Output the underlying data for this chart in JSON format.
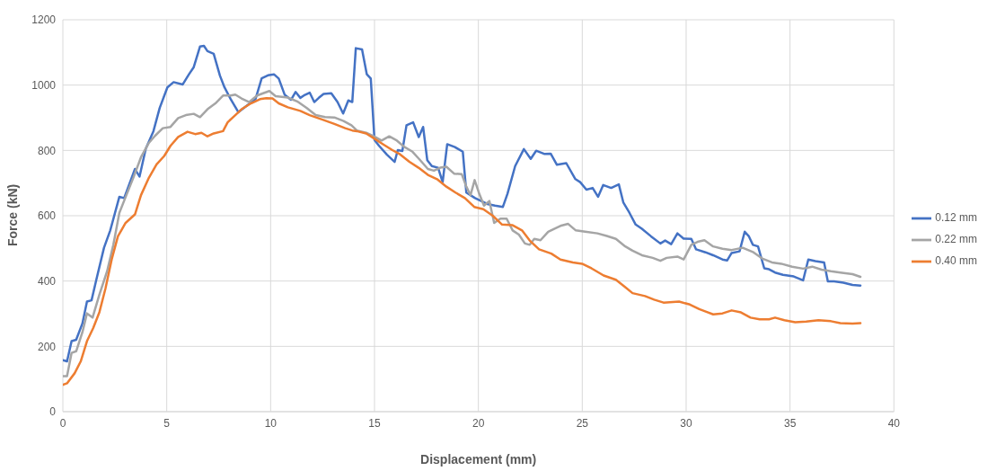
{
  "chart_data": {
    "type": "line",
    "xlabel": "Displacement (mm)",
    "ylabel": "Force (kN)",
    "xlim": [
      0,
      40
    ],
    "xticks": [
      0,
      5,
      10,
      15,
      20,
      25,
      30,
      35,
      40
    ],
    "ylim": [
      0,
      1200
    ],
    "yticks": [
      0,
      200,
      400,
      600,
      800,
      1000,
      1200
    ],
    "grid": true,
    "legend": "right",
    "series": [
      {
        "name": "0.12 mm",
        "color": "#4472c4",
        "x": [
          0,
          0.2,
          0.42,
          0.64,
          0.94,
          1.16,
          1.38,
          1.61,
          1.98,
          2.28,
          2.72,
          2.95,
          3.47,
          3.69,
          3.99,
          4.36,
          4.66,
          5.03,
          5.33,
          5.77,
          6.07,
          6.3,
          6.6,
          6.79,
          6.96,
          7.26,
          7.56,
          7.78,
          8.08,
          8.45,
          8.9,
          9.27,
          9.57,
          9.87,
          10.16,
          10.39,
          10.68,
          10.98,
          11.2,
          11.43,
          11.65,
          11.88,
          12.1,
          12.32,
          12.55,
          12.92,
          13.22,
          13.49,
          13.74,
          13.93,
          14.1,
          14.4,
          14.63,
          14.82,
          15.0,
          15.22,
          15.6,
          15.97,
          16.12,
          16.34,
          16.54,
          16.86,
          17.13,
          17.34,
          17.54,
          17.76,
          18.06,
          18.28,
          18.5,
          18.87,
          19.25,
          19.42,
          19.84,
          20.43,
          20.8,
          21.18,
          21.4,
          21.77,
          22.19,
          22.52,
          22.78,
          23.19,
          23.48,
          23.78,
          24.23,
          24.67,
          24.9,
          25.2,
          25.5,
          25.76,
          26.01,
          26.39,
          26.76,
          26.98,
          27.27,
          27.57,
          27.87,
          28.31,
          28.76,
          28.99,
          29.28,
          29.58,
          29.88,
          30.25,
          30.48,
          30.93,
          31.3,
          31.75,
          31.97,
          32.19,
          32.57,
          32.82,
          33.01,
          33.21,
          33.46,
          33.76,
          33.99,
          34.28,
          34.66,
          35.18,
          35.63,
          35.88,
          36.22,
          36.64,
          36.82,
          37.12,
          37.57,
          38.01,
          38.39
        ],
        "values": [
          158,
          154,
          216,
          220,
          270,
          337,
          341,
          404,
          502,
          555,
          658,
          654,
          743,
          720,
          805,
          859,
          930,
          993,
          1009,
          1002,
          1033,
          1055,
          1118,
          1120,
          1104,
          1096,
          1029,
          993,
          957,
          917,
          939,
          957,
          1021,
          1030,
          1033,
          1020,
          970,
          955,
          979,
          961,
          970,
          977,
          948,
          961,
          973,
          975,
          948,
          913,
          953,
          948,
          1113,
          1109,
          1033,
          1020,
          832,
          814,
          787,
          765,
          801,
          798,
          877,
          886,
          841,
          872,
          770,
          752,
          747,
          703,
          819,
          810,
          796,
          671,
          654,
          636,
          631,
          627,
          667,
          752,
          804,
          774,
          799,
          789,
          790,
          756,
          761,
          712,
          703,
          680,
          685,
          658,
          694,
          685,
          696,
          640,
          609,
          573,
          560,
          537,
          515,
          524,
          513,
          546,
          530,
          529,
          497,
          488,
          479,
          466,
          463,
          486,
          491,
          551,
          538,
          511,
          506,
          439,
          436,
          426,
          419,
          414,
          402,
          466,
          461,
          457,
          399,
          399,
          395,
          388,
          386
        ]
      },
      {
        "name": "0.22 mm",
        "color": "#a5a5a5",
        "x": [
          0,
          0.2,
          0.42,
          0.64,
          0.94,
          1.16,
          1.43,
          1.76,
          2.13,
          2.43,
          2.72,
          3.0,
          3.39,
          3.76,
          4.14,
          4.44,
          4.81,
          5.18,
          5.55,
          5.92,
          6.3,
          6.6,
          6.96,
          7.34,
          7.71,
          8.08,
          8.3,
          8.6,
          8.97,
          9.35,
          9.64,
          9.94,
          10.24,
          10.83,
          11.28,
          11.73,
          12.17,
          12.62,
          13.07,
          13.51,
          13.89,
          14.15,
          14.6,
          14.97,
          15.34,
          15.71,
          16.08,
          16.45,
          16.83,
          17.2,
          17.57,
          17.86,
          18.16,
          18.46,
          18.83,
          19.2,
          19.42,
          19.62,
          19.82,
          20.02,
          20.27,
          20.53,
          20.76,
          21.06,
          21.36,
          21.65,
          21.95,
          22.24,
          22.47,
          22.69,
          22.99,
          23.36,
          23.95,
          24.32,
          24.69,
          25.14,
          25.73,
          26.18,
          26.62,
          27.07,
          27.42,
          27.87,
          28.39,
          28.76,
          29.06,
          29.58,
          29.88,
          30.25,
          30.55,
          30.88,
          31.3,
          31.75,
          32.19,
          32.72,
          33.24,
          33.69,
          34.13,
          34.58,
          35.1,
          35.63,
          36.07,
          36.52,
          36.97,
          37.42,
          38.01,
          38.39
        ],
        "values": [
          109,
          109,
          180,
          185,
          243,
          301,
          288,
          359,
          430,
          511,
          609,
          654,
          716,
          779,
          823,
          845,
          868,
          872,
          899,
          908,
          912,
          902,
          926,
          944,
          968,
          968,
          971,
          959,
          948,
          968,
          975,
          982,
          966,
          962,
          950,
          930,
          908,
          902,
          901,
          890,
          877,
          861,
          854,
          843,
          830,
          843,
          830,
          810,
          796,
          770,
          743,
          738,
          747,
          750,
          729,
          727,
          689,
          663,
          709,
          671,
          631,
          645,
          578,
          591,
          591,
          555,
          542,
          515,
          511,
          529,
          525,
          551,
          569,
          575,
          555,
          551,
          546,
          538,
          529,
          506,
          493,
          479,
          471,
          462,
          471,
          475,
          466,
          511,
          520,
          525,
          506,
          499,
          495,
          502,
          488,
          468,
          457,
          453,
          444,
          438,
          444,
          435,
          430,
          426,
          421,
          413
        ]
      },
      {
        "name": "0.40 mm",
        "color": "#ed7d31",
        "x": [
          0,
          0.2,
          0.57,
          0.86,
          1.16,
          1.46,
          1.76,
          2.05,
          2.35,
          2.65,
          3.02,
          3.47,
          3.76,
          4.14,
          4.51,
          4.88,
          5.18,
          5.55,
          6.0,
          6.37,
          6.67,
          6.96,
          7.26,
          7.71,
          7.93,
          8.23,
          8.6,
          9.05,
          9.49,
          9.79,
          10.09,
          10.39,
          10.83,
          11.43,
          11.88,
          12.47,
          13.07,
          13.59,
          13.93,
          14.15,
          14.6,
          14.97,
          15.41,
          15.86,
          16.23,
          16.68,
          17.12,
          17.57,
          18.01,
          18.46,
          18.9,
          19.35,
          19.8,
          20.24,
          20.69,
          21.14,
          21.65,
          22.1,
          22.47,
          22.92,
          23.51,
          23.95,
          24.55,
          24.99,
          25.44,
          26.03,
          26.62,
          27.07,
          27.42,
          28.02,
          28.46,
          28.91,
          29.66,
          30.18,
          30.63,
          31.0,
          31.3,
          31.75,
          32.19,
          32.64,
          33.1,
          33.54,
          33.99,
          34.28,
          34.73,
          35.25,
          35.78,
          36.37,
          36.97,
          37.42,
          38.01,
          38.39
        ],
        "values": [
          82,
          87,
          118,
          154,
          216,
          256,
          305,
          377,
          466,
          537,
          578,
          604,
          663,
          716,
          757,
          783,
          814,
          841,
          857,
          850,
          854,
          843,
          852,
          859,
          886,
          904,
          926,
          944,
          957,
          960,
          959,
          944,
          932,
          921,
          908,
          895,
          881,
          868,
          861,
          859,
          852,
          837,
          819,
          801,
          788,
          765,
          747,
          725,
          712,
          689,
          671,
          654,
          627,
          620,
          600,
          573,
          571,
          555,
          524,
          497,
          484,
          466,
          457,
          453,
          439,
          417,
          404,
          381,
          363,
          354,
          343,
          334,
          337,
          328,
          314,
          305,
          298,
          301,
          310,
          304,
          288,
          283,
          283,
          288,
          280,
          274,
          276,
          280,
          277,
          271,
          270,
          271
        ]
      }
    ]
  }
}
